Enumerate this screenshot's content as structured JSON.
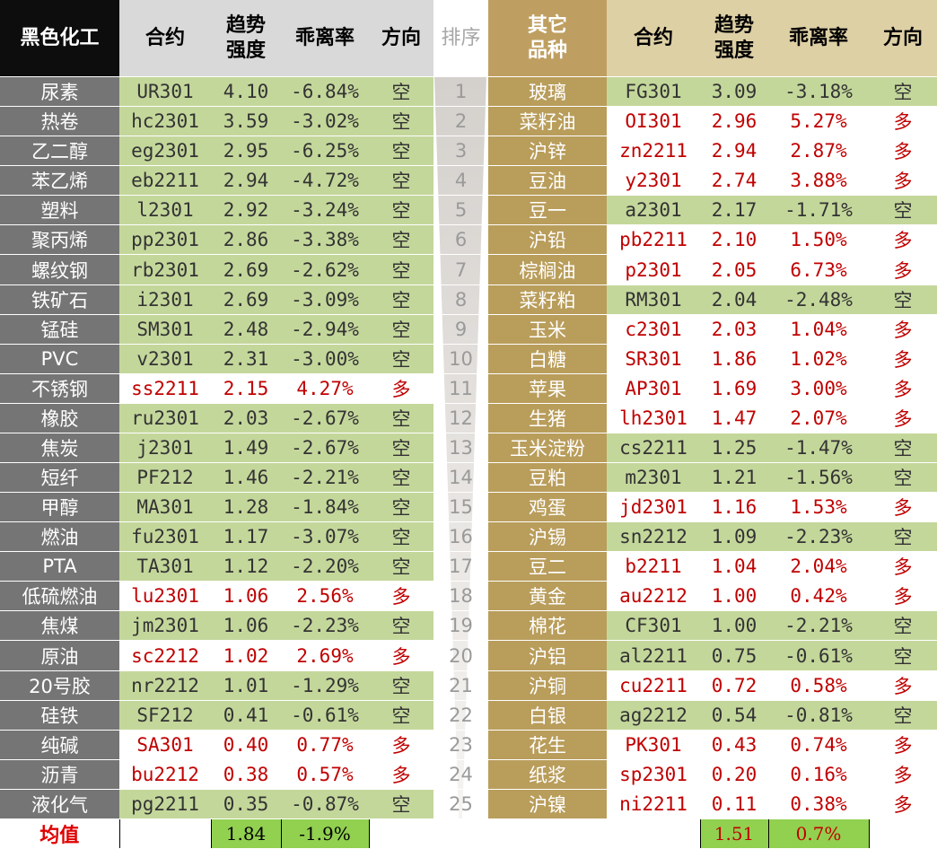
{
  "headers": {
    "black_sector": "黑色化工",
    "contract": "合约",
    "trend_strength": "趋势强度",
    "deviation": "乖离率",
    "direction": "方向",
    "rank": "排序",
    "other_varieties": "其它品种"
  },
  "left_rows": [
    {
      "name": "尿素",
      "code": "UR301",
      "strength": "4.10",
      "deviation": "-6.84%",
      "direction": "空"
    },
    {
      "name": "热卷",
      "code": "hc2301",
      "strength": "3.59",
      "deviation": "-3.02%",
      "direction": "空"
    },
    {
      "name": "乙二醇",
      "code": "eg2301",
      "strength": "2.95",
      "deviation": "-6.25%",
      "direction": "空"
    },
    {
      "name": "苯乙烯",
      "code": "eb2211",
      "strength": "2.94",
      "deviation": "-4.72%",
      "direction": "空"
    },
    {
      "name": "塑料",
      "code": "l2301",
      "strength": "2.92",
      "deviation": "-3.24%",
      "direction": "空"
    },
    {
      "name": "聚丙烯",
      "code": "pp2301",
      "strength": "2.86",
      "deviation": "-3.38%",
      "direction": "空"
    },
    {
      "name": "螺纹钢",
      "code": "rb2301",
      "strength": "2.69",
      "deviation": "-2.62%",
      "direction": "空"
    },
    {
      "name": "铁矿石",
      "code": "i2301",
      "strength": "2.69",
      "deviation": "-3.09%",
      "direction": "空"
    },
    {
      "name": "锰硅",
      "code": "SM301",
      "strength": "2.48",
      "deviation": "-2.94%",
      "direction": "空"
    },
    {
      "name": "PVC",
      "code": "v2301",
      "strength": "2.31",
      "deviation": "-3.00%",
      "direction": "空"
    },
    {
      "name": "不锈钢",
      "code": "ss2211",
      "strength": "2.15",
      "deviation": "4.27%",
      "direction": "多"
    },
    {
      "name": "橡胶",
      "code": "ru2301",
      "strength": "2.03",
      "deviation": "-2.67%",
      "direction": "空"
    },
    {
      "name": "焦炭",
      "code": "j2301",
      "strength": "1.49",
      "deviation": "-2.67%",
      "direction": "空"
    },
    {
      "name": "短纤",
      "code": "PF212",
      "strength": "1.46",
      "deviation": "-2.21%",
      "direction": "空"
    },
    {
      "name": "甲醇",
      "code": "MA301",
      "strength": "1.28",
      "deviation": "-1.84%",
      "direction": "空"
    },
    {
      "name": "燃油",
      "code": "fu2301",
      "strength": "1.17",
      "deviation": "-3.07%",
      "direction": "空"
    },
    {
      "name": "PTA",
      "code": "TA301",
      "strength": "1.12",
      "deviation": "-2.20%",
      "direction": "空"
    },
    {
      "name": "低硫燃油",
      "code": "lu2301",
      "strength": "1.06",
      "deviation": "2.56%",
      "direction": "多"
    },
    {
      "name": "焦煤",
      "code": "jm2301",
      "strength": "1.06",
      "deviation": "-2.23%",
      "direction": "空"
    },
    {
      "name": "原油",
      "code": "sc2212",
      "strength": "1.02",
      "deviation": "2.69%",
      "direction": "多"
    },
    {
      "name": "20号胶",
      "code": "nr2212",
      "strength": "1.01",
      "deviation": "-1.29%",
      "direction": "空"
    },
    {
      "name": "硅铁",
      "code": "SF212",
      "strength": "0.41",
      "deviation": "-0.61%",
      "direction": "空"
    },
    {
      "name": "纯碱",
      "code": "SA301",
      "strength": "0.40",
      "deviation": "0.77%",
      "direction": "多"
    },
    {
      "name": "沥青",
      "code": "bu2212",
      "strength": "0.38",
      "deviation": "0.57%",
      "direction": "多"
    },
    {
      "name": "液化气",
      "code": "pg2211",
      "strength": "0.35",
      "deviation": "-0.87%",
      "direction": "空"
    }
  ],
  "ranks": [
    "1",
    "2",
    "3",
    "4",
    "5",
    "6",
    "7",
    "8",
    "9",
    "10",
    "11",
    "12",
    "13",
    "14",
    "15",
    "16",
    "17",
    "18",
    "19",
    "20",
    "21",
    "22",
    "23",
    "24",
    "25"
  ],
  "right_rows": [
    {
      "name": "玻璃",
      "code": "FG301",
      "strength": "3.09",
      "deviation": "-3.18%",
      "direction": "空"
    },
    {
      "name": "菜籽油",
      "code": "OI301",
      "strength": "2.96",
      "deviation": "5.27%",
      "direction": "多"
    },
    {
      "name": "沪锌",
      "code": "zn2211",
      "strength": "2.94",
      "deviation": "2.87%",
      "direction": "多"
    },
    {
      "name": "豆油",
      "code": "y2301",
      "strength": "2.74",
      "deviation": "3.88%",
      "direction": "多"
    },
    {
      "name": "豆一",
      "code": "a2301",
      "strength": "2.17",
      "deviation": "-1.71%",
      "direction": "空"
    },
    {
      "name": "沪铅",
      "code": "pb2211",
      "strength": "2.10",
      "deviation": "1.50%",
      "direction": "多"
    },
    {
      "name": "棕榈油",
      "code": "p2301",
      "strength": "2.05",
      "deviation": "6.73%",
      "direction": "多"
    },
    {
      "name": "菜籽粕",
      "code": "RM301",
      "strength": "2.04",
      "deviation": "-2.48%",
      "direction": "空"
    },
    {
      "name": "玉米",
      "code": "c2301",
      "strength": "2.03",
      "deviation": "1.04%",
      "direction": "多"
    },
    {
      "name": "白糖",
      "code": "SR301",
      "strength": "1.86",
      "deviation": "1.02%",
      "direction": "多"
    },
    {
      "name": "苹果",
      "code": "AP301",
      "strength": "1.69",
      "deviation": "3.00%",
      "direction": "多"
    },
    {
      "name": "生猪",
      "code": "lh2301",
      "strength": "1.47",
      "deviation": "2.07%",
      "direction": "多"
    },
    {
      "name": "玉米淀粉",
      "code": "cs2211",
      "strength": "1.25",
      "deviation": "-1.47%",
      "direction": "空"
    },
    {
      "name": "豆粕",
      "code": "m2301",
      "strength": "1.21",
      "deviation": "-1.56%",
      "direction": "空"
    },
    {
      "name": "鸡蛋",
      "code": "jd2301",
      "strength": "1.16",
      "deviation": "1.53%",
      "direction": "多"
    },
    {
      "name": "沪锡",
      "code": "sn2212",
      "strength": "1.09",
      "deviation": "-2.23%",
      "direction": "空"
    },
    {
      "name": "豆二",
      "code": "b2211",
      "strength": "1.04",
      "deviation": "2.04%",
      "direction": "多"
    },
    {
      "name": "黄金",
      "code": "au2212",
      "strength": "1.00",
      "deviation": "0.42%",
      "direction": "多"
    },
    {
      "name": "棉花",
      "code": "CF301",
      "strength": "1.00",
      "deviation": "-2.21%",
      "direction": "空"
    },
    {
      "name": "沪铝",
      "code": "al2211",
      "strength": "0.75",
      "deviation": "-0.61%",
      "direction": "空"
    },
    {
      "name": "沪铜",
      "code": "cu2211",
      "strength": "0.72",
      "deviation": "0.58%",
      "direction": "多"
    },
    {
      "name": "白银",
      "code": "ag2212",
      "strength": "0.54",
      "deviation": "-0.81%",
      "direction": "空"
    },
    {
      "name": "花生",
      "code": "PK301",
      "strength": "0.43",
      "deviation": "0.74%",
      "direction": "多"
    },
    {
      "name": "纸浆",
      "code": "sp2301",
      "strength": "0.20",
      "deviation": "0.16%",
      "direction": "多"
    },
    {
      "name": "沪镍",
      "code": "ni2211",
      "strength": "0.11",
      "deviation": "0.38%",
      "direction": "多"
    }
  ],
  "average": {
    "label": "均值",
    "left_strength": "1.84",
    "left_deviation": "-1.9%",
    "right_strength": "1.51",
    "right_deviation": "0.7%"
  },
  "colors": {
    "short_bg": "#c4d79b",
    "long_text": "#c00000",
    "left_name_bg": "#757575",
    "right_name_bg": "#b99d5b",
    "average_bg": "#92d050"
  }
}
